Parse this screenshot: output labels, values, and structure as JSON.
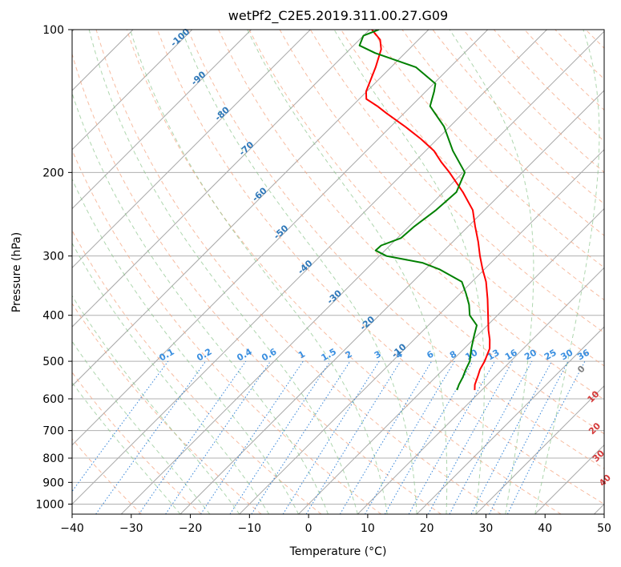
{
  "chart_data": {
    "type": "skew-t",
    "title": "wetPf2_C2E5.2019.311.00.27.G09",
    "xlabel": "Temperature (°C)",
    "ylabel": "Pressure (hPa)",
    "xlim": [
      -40,
      50
    ],
    "ylim": [
      1050,
      100
    ],
    "x_ticks": [
      -40,
      -30,
      -20,
      -10,
      0,
      10,
      20,
      30,
      40,
      50
    ],
    "y_ticks": [
      100,
      200,
      300,
      400,
      500,
      600,
      700,
      800,
      900,
      1000
    ],
    "grid": true,
    "series": [
      {
        "key": "temperature",
        "color": "#ff0000",
        "points": [
          [
            575,
            8.8
          ],
          [
            560,
            7.9
          ],
          [
            540,
            7.1
          ],
          [
            520,
            6.2
          ],
          [
            500,
            5.6
          ],
          [
            470,
            4.3
          ],
          [
            450,
            2.8
          ],
          [
            430,
            1.0
          ],
          [
            400,
            -1.6
          ],
          [
            370,
            -4.4
          ],
          [
            340,
            -7.6
          ],
          [
            320,
            -10.3
          ],
          [
            300,
            -13.0
          ],
          [
            280,
            -15.7
          ],
          [
            260,
            -18.8
          ],
          [
            240,
            -22.0
          ],
          [
            220,
            -26.7
          ],
          [
            200,
            -32.3
          ],
          [
            190,
            -35.5
          ],
          [
            180,
            -38.6
          ],
          [
            170,
            -42.8
          ],
          [
            160,
            -47.6
          ],
          [
            150,
            -53.0
          ],
          [
            145,
            -55.7
          ],
          [
            140,
            -58.8
          ],
          [
            135,
            -60.1
          ],
          [
            130,
            -60.9
          ],
          [
            120,
            -62.6
          ],
          [
            110,
            -64.7
          ],
          [
            105,
            -66.5
          ],
          [
            100,
            -69.6
          ]
        ]
      },
      {
        "key": "dewpoint",
        "color": "#008000",
        "points": [
          [
            575,
            5.8
          ],
          [
            560,
            5.2
          ],
          [
            540,
            4.6
          ],
          [
            520,
            3.8
          ],
          [
            500,
            3.1
          ],
          [
            470,
            1.2
          ],
          [
            440,
            -0.6
          ],
          [
            420,
            -1.8
          ],
          [
            400,
            -4.7
          ],
          [
            380,
            -6.6
          ],
          [
            360,
            -9.0
          ],
          [
            340,
            -11.7
          ],
          [
            320,
            -17.6
          ],
          [
            310,
            -21.6
          ],
          [
            300,
            -28.8
          ],
          [
            292,
            -31.6
          ],
          [
            285,
            -31.5
          ],
          [
            275,
            -29.4
          ],
          [
            260,
            -29.1
          ],
          [
            240,
            -28.2
          ],
          [
            220,
            -27.8
          ],
          [
            200,
            -29.7
          ],
          [
            180,
            -35.4
          ],
          [
            160,
            -41.0
          ],
          [
            145,
            -46.8
          ],
          [
            135,
            -48.6
          ],
          [
            130,
            -49.7
          ],
          [
            120,
            -55.8
          ],
          [
            112,
            -65.1
          ],
          [
            108,
            -69.0
          ],
          [
            103,
            -70.0
          ],
          [
            100,
            -68.4
          ]
        ]
      }
    ],
    "reference_lines": {
      "isotherm_labels": [
        "-100",
        "-90",
        "-80",
        "-70",
        "-60",
        "-50",
        "-40",
        "-30",
        "-20",
        "-10"
      ],
      "mixing_ratio_labels": [
        "0.1",
        "0.2",
        "0.4",
        "0.6",
        "1",
        "1.5",
        "2",
        "3",
        "4",
        "6",
        "8",
        "10",
        "13",
        "16",
        "20",
        "25",
        "30",
        "36"
      ],
      "moist_adiabat_labels": [
        "0",
        "10",
        "20",
        "30",
        "40"
      ]
    }
  }
}
